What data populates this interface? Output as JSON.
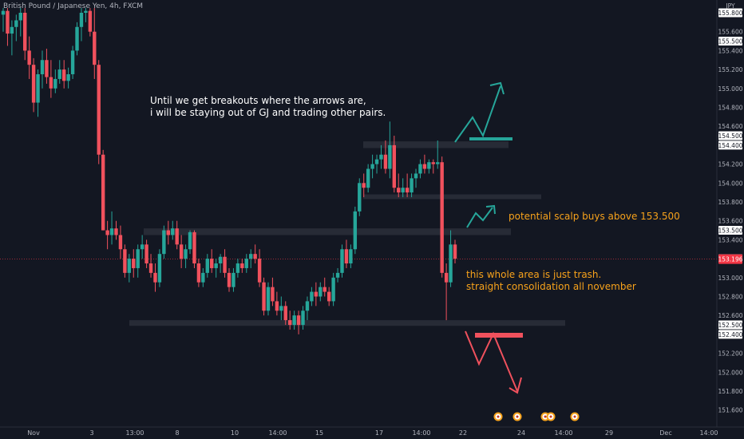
{
  "header": {
    "symbol_label": "British Pound / Japanese Yen, 4h, FXCM"
  },
  "price_axis": {
    "currency": "JPY",
    "current_price_label": "153.196",
    "colors": {
      "background": "#131722",
      "axis_text": "#b2b5be",
      "badge_bg": "#ffffff",
      "current_badge_bg": "#f23645"
    }
  },
  "annotations": {
    "note_breakout_line1": "Until we get breakouts where the arrows are,",
    "note_breakout_line2": "i will be staying out of GJ and trading other pairs.",
    "note_scalp": "potential scalp buys above 153.500",
    "note_trash_line1": "this whole area is just trash.",
    "note_trash_line2": "straight consolidation all november"
  },
  "colors": {
    "bull": "#26a69a",
    "bear": "#f0515d",
    "zone": "#2a2e39",
    "arrow_up": "#26a69a",
    "arrow_down": "#f0515d",
    "annotation_orange": "#f7a21b"
  },
  "chart_data": {
    "type": "candlestick",
    "title": "British Pound / Japanese Yen, 4h, FXCM",
    "xlabel": "",
    "ylabel": "",
    "ylim": [
      151.5,
      155.85
    ],
    "grid": false,
    "x_tick_labels": [
      "Nov",
      "3",
      "13:00",
      "8",
      "10",
      "14:00",
      "15",
      "17",
      "14:00",
      "22",
      "24",
      "14:00",
      "29",
      "Dec",
      "14:00"
    ],
    "y_tick_labels": [
      155.8,
      155.6,
      155.5,
      155.4,
      155.2,
      155.0,
      154.8,
      154.6,
      154.5,
      154.4,
      154.2,
      154.0,
      153.8,
      153.6,
      153.5,
      153.4,
      153.2,
      153.0,
      152.8,
      152.6,
      152.5,
      152.4,
      152.2,
      152.0,
      151.8,
      151.6
    ],
    "horizontal_lines": [
      {
        "price": 153.196,
        "label": "153.196"
      }
    ],
    "zones": [
      {
        "price_top": 154.44,
        "price_bottom": 154.37
      },
      {
        "price_top": 153.88,
        "price_bottom": 153.83
      },
      {
        "price_top": 153.52,
        "price_bottom": 153.45
      },
      {
        "price_top": 152.55,
        "price_bottom": 152.49
      }
    ],
    "candles": [
      {
        "o": 155.78,
        "h": 155.85,
        "l": 155.6,
        "c": 155.82
      },
      {
        "o": 155.82,
        "h": 155.85,
        "l": 155.45,
        "c": 155.58
      },
      {
        "o": 155.58,
        "h": 155.72,
        "l": 155.35,
        "c": 155.65
      },
      {
        "o": 155.65,
        "h": 155.78,
        "l": 155.5,
        "c": 155.72
      },
      {
        "o": 155.72,
        "h": 155.85,
        "l": 155.55,
        "c": 155.8
      },
      {
        "o": 155.8,
        "h": 155.85,
        "l": 155.3,
        "c": 155.4
      },
      {
        "o": 155.4,
        "h": 155.55,
        "l": 155.1,
        "c": 155.25
      },
      {
        "o": 155.25,
        "h": 155.32,
        "l": 154.75,
        "c": 154.85
      },
      {
        "o": 154.85,
        "h": 155.2,
        "l": 154.7,
        "c": 155.15
      },
      {
        "o": 155.15,
        "h": 155.4,
        "l": 155.0,
        "c": 155.3
      },
      {
        "o": 155.3,
        "h": 155.42,
        "l": 155.05,
        "c": 155.12
      },
      {
        "o": 155.12,
        "h": 155.3,
        "l": 154.9,
        "c": 155.0
      },
      {
        "o": 155.0,
        "h": 155.2,
        "l": 154.95,
        "c": 155.1
      },
      {
        "o": 155.1,
        "h": 155.3,
        "l": 155.05,
        "c": 155.2
      },
      {
        "o": 155.2,
        "h": 155.3,
        "l": 155.0,
        "c": 155.08
      },
      {
        "o": 155.08,
        "h": 155.22,
        "l": 155.0,
        "c": 155.15
      },
      {
        "o": 155.15,
        "h": 155.45,
        "l": 155.1,
        "c": 155.4
      },
      {
        "o": 155.4,
        "h": 155.7,
        "l": 155.35,
        "c": 155.65
      },
      {
        "o": 155.65,
        "h": 155.85,
        "l": 155.5,
        "c": 155.8
      },
      {
        "o": 155.8,
        "h": 155.85,
        "l": 155.7,
        "c": 155.82
      },
      {
        "o": 155.82,
        "h": 155.85,
        "l": 155.55,
        "c": 155.6
      },
      {
        "o": 155.6,
        "h": 155.85,
        "l": 155.1,
        "c": 155.25
      },
      {
        "o": 155.25,
        "h": 155.3,
        "l": 154.2,
        "c": 154.3
      },
      {
        "o": 154.3,
        "h": 154.35,
        "l": 153.5,
        "c": 153.5
      },
      {
        "o": 153.5,
        "h": 153.6,
        "l": 153.3,
        "c": 153.45
      },
      {
        "o": 153.45,
        "h": 153.7,
        "l": 153.35,
        "c": 153.52
      },
      {
        "o": 153.52,
        "h": 153.6,
        "l": 153.4,
        "c": 153.45
      },
      {
        "o": 153.45,
        "h": 153.55,
        "l": 153.2,
        "c": 153.3
      },
      {
        "o": 153.3,
        "h": 153.35,
        "l": 153.0,
        "c": 153.05
      },
      {
        "o": 153.05,
        "h": 153.25,
        "l": 152.95,
        "c": 153.2
      },
      {
        "o": 153.2,
        "h": 153.3,
        "l": 153.0,
        "c": 153.1
      },
      {
        "o": 153.1,
        "h": 153.35,
        "l": 153.0,
        "c": 153.3
      },
      {
        "o": 153.3,
        "h": 153.45,
        "l": 153.2,
        "c": 153.35
      },
      {
        "o": 153.35,
        "h": 153.4,
        "l": 153.1,
        "c": 153.15
      },
      {
        "o": 153.15,
        "h": 153.25,
        "l": 153.0,
        "c": 153.05
      },
      {
        "o": 153.05,
        "h": 153.15,
        "l": 152.85,
        "c": 152.95
      },
      {
        "o": 152.95,
        "h": 153.3,
        "l": 152.9,
        "c": 153.25
      },
      {
        "o": 153.25,
        "h": 153.55,
        "l": 153.2,
        "c": 153.5
      },
      {
        "o": 153.5,
        "h": 153.6,
        "l": 153.35,
        "c": 153.45
      },
      {
        "o": 153.45,
        "h": 153.6,
        "l": 153.4,
        "c": 153.52
      },
      {
        "o": 153.52,
        "h": 153.6,
        "l": 153.3,
        "c": 153.35
      },
      {
        "o": 153.35,
        "h": 153.45,
        "l": 153.1,
        "c": 153.2
      },
      {
        "o": 153.2,
        "h": 153.35,
        "l": 153.1,
        "c": 153.3
      },
      {
        "o": 153.3,
        "h": 153.5,
        "l": 153.25,
        "c": 153.48
      },
      {
        "o": 153.48,
        "h": 153.5,
        "l": 153.1,
        "c": 153.15
      },
      {
        "o": 153.15,
        "h": 153.2,
        "l": 152.9,
        "c": 152.95
      },
      {
        "o": 152.95,
        "h": 153.1,
        "l": 152.9,
        "c": 153.05
      },
      {
        "o": 153.05,
        "h": 153.25,
        "l": 153.0,
        "c": 153.2
      },
      {
        "o": 153.2,
        "h": 153.3,
        "l": 153.05,
        "c": 153.1
      },
      {
        "o": 153.1,
        "h": 153.2,
        "l": 153.0,
        "c": 153.15
      },
      {
        "o": 153.15,
        "h": 153.25,
        "l": 153.05,
        "c": 153.22
      },
      {
        "o": 153.22,
        "h": 153.3,
        "l": 153.0,
        "c": 153.05
      },
      {
        "o": 153.05,
        "h": 153.1,
        "l": 152.85,
        "c": 152.9
      },
      {
        "o": 152.9,
        "h": 153.1,
        "l": 152.85,
        "c": 153.05
      },
      {
        "o": 153.05,
        "h": 153.2,
        "l": 153.0,
        "c": 153.15
      },
      {
        "o": 153.15,
        "h": 153.2,
        "l": 153.05,
        "c": 153.1
      },
      {
        "o": 153.1,
        "h": 153.25,
        "l": 153.05,
        "c": 153.2
      },
      {
        "o": 153.2,
        "h": 153.3,
        "l": 153.1,
        "c": 153.25
      },
      {
        "o": 153.25,
        "h": 153.35,
        "l": 153.15,
        "c": 153.2
      },
      {
        "o": 153.2,
        "h": 153.3,
        "l": 152.9,
        "c": 152.95
      },
      {
        "o": 152.95,
        "h": 153.0,
        "l": 152.6,
        "c": 152.65
      },
      {
        "o": 152.65,
        "h": 152.95,
        "l": 152.6,
        "c": 152.9
      },
      {
        "o": 152.9,
        "h": 153.0,
        "l": 152.7,
        "c": 152.75
      },
      {
        "o": 152.75,
        "h": 152.85,
        "l": 152.6,
        "c": 152.65
      },
      {
        "o": 152.65,
        "h": 152.8,
        "l": 152.55,
        "c": 152.7
      },
      {
        "o": 152.7,
        "h": 152.75,
        "l": 152.5,
        "c": 152.55
      },
      {
        "o": 152.55,
        "h": 152.65,
        "l": 152.45,
        "c": 152.5
      },
      {
        "o": 152.5,
        "h": 152.65,
        "l": 152.45,
        "c": 152.6
      },
      {
        "o": 152.6,
        "h": 152.65,
        "l": 152.4,
        "c": 152.5
      },
      {
        "o": 152.5,
        "h": 152.7,
        "l": 152.45,
        "c": 152.65
      },
      {
        "o": 152.65,
        "h": 152.8,
        "l": 152.55,
        "c": 152.75
      },
      {
        "o": 152.75,
        "h": 152.9,
        "l": 152.7,
        "c": 152.85
      },
      {
        "o": 152.85,
        "h": 152.95,
        "l": 152.7,
        "c": 152.8
      },
      {
        "o": 152.8,
        "h": 152.95,
        "l": 152.75,
        "c": 152.9
      },
      {
        "o": 152.9,
        "h": 153.0,
        "l": 152.8,
        "c": 152.85
      },
      {
        "o": 152.85,
        "h": 152.9,
        "l": 152.7,
        "c": 152.75
      },
      {
        "o": 152.75,
        "h": 153.05,
        "l": 152.7,
        "c": 153.0
      },
      {
        "o": 153.0,
        "h": 153.1,
        "l": 152.95,
        "c": 153.05
      },
      {
        "o": 153.05,
        "h": 153.35,
        "l": 153.0,
        "c": 153.3
      },
      {
        "o": 153.3,
        "h": 153.4,
        "l": 153.1,
        "c": 153.15
      },
      {
        "o": 153.15,
        "h": 153.35,
        "l": 153.1,
        "c": 153.3
      },
      {
        "o": 153.3,
        "h": 153.75,
        "l": 153.25,
        "c": 153.7
      },
      {
        "o": 153.7,
        "h": 154.05,
        "l": 153.65,
        "c": 154.0
      },
      {
        "o": 154.0,
        "h": 154.1,
        "l": 153.85,
        "c": 153.95
      },
      {
        "o": 153.95,
        "h": 154.2,
        "l": 153.9,
        "c": 154.15
      },
      {
        "o": 154.15,
        "h": 154.3,
        "l": 154.05,
        "c": 154.2
      },
      {
        "o": 154.2,
        "h": 154.3,
        "l": 154.1,
        "c": 154.25
      },
      {
        "o": 154.25,
        "h": 154.4,
        "l": 154.15,
        "c": 154.3
      },
      {
        "o": 154.3,
        "h": 154.45,
        "l": 154.1,
        "c": 154.15
      },
      {
        "o": 154.15,
        "h": 154.65,
        "l": 154.05,
        "c": 154.4
      },
      {
        "o": 154.4,
        "h": 154.5,
        "l": 153.9,
        "c": 153.95
      },
      {
        "o": 153.95,
        "h": 154.1,
        "l": 153.85,
        "c": 153.9
      },
      {
        "o": 153.9,
        "h": 154.05,
        "l": 153.85,
        "c": 153.95
      },
      {
        "o": 153.95,
        "h": 154.1,
        "l": 153.85,
        "c": 153.9
      },
      {
        "o": 153.9,
        "h": 154.1,
        "l": 153.85,
        "c": 154.05
      },
      {
        "o": 154.05,
        "h": 154.15,
        "l": 153.95,
        "c": 154.1
      },
      {
        "o": 154.1,
        "h": 154.25,
        "l": 154.05,
        "c": 154.2
      },
      {
        "o": 154.2,
        "h": 154.3,
        "l": 154.1,
        "c": 154.15
      },
      {
        "o": 154.15,
        "h": 154.25,
        "l": 154.1,
        "c": 154.22
      },
      {
        "o": 154.22,
        "h": 154.25,
        "l": 154.1,
        "c": 154.2
      },
      {
        "o": 154.2,
        "h": 154.45,
        "l": 154.15,
        "c": 154.22
      },
      {
        "o": 154.22,
        "h": 154.28,
        "l": 153.0,
        "c": 153.05
      },
      {
        "o": 153.05,
        "h": 153.15,
        "l": 152.55,
        "c": 152.95
      },
      {
        "o": 152.95,
        "h": 153.5,
        "l": 152.9,
        "c": 153.35
      },
      {
        "o": 153.35,
        "h": 153.4,
        "l": 153.15,
        "c": 153.2
      }
    ],
    "event_markers": [
      "calendar-event",
      "calendar-event",
      "calendar-event",
      "calendar-event",
      "calendar-event"
    ]
  }
}
